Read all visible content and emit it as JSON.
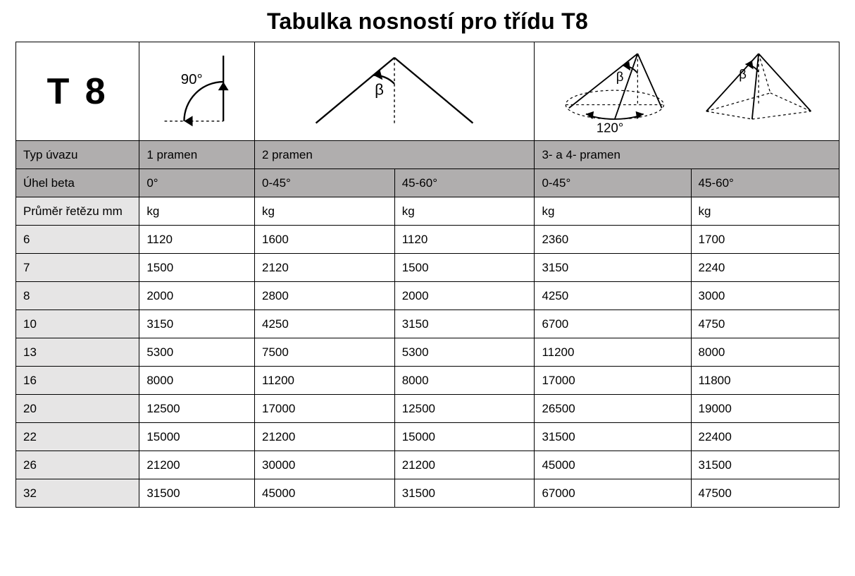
{
  "title": "Tabulka nosností pro třídu T8",
  "class_label": "T 8",
  "diagram": {
    "angle_90": "90°",
    "beta": "β",
    "angle_120": "120°"
  },
  "headers": {
    "typ_uvazu_label": "Typ úvazu",
    "typ_uvazu_1": "1 pramen",
    "typ_uvazu_2": "2 pramen",
    "typ_uvazu_34": "3- a 4- pramen",
    "uhel_beta_label": "Úhel beta",
    "beta_0": "0°",
    "beta_0_45_a": "0-45°",
    "beta_45_60_a": "45-60°",
    "beta_0_45_b": "0-45°",
    "beta_45_60_b": "45-60°",
    "prumer_label": "Průměr řetězu mm",
    "unit": "kg"
  },
  "rows": [
    {
      "d": "6",
      "v": [
        "1120",
        "1600",
        "1120",
        "2360",
        "1700"
      ]
    },
    {
      "d": "7",
      "v": [
        "1500",
        "2120",
        "1500",
        "3150",
        "2240"
      ]
    },
    {
      "d": "8",
      "v": [
        "2000",
        "2800",
        "2000",
        "4250",
        "3000"
      ]
    },
    {
      "d": "10",
      "v": [
        "3150",
        "4250",
        "3150",
        "6700",
        "4750"
      ]
    },
    {
      "d": "13",
      "v": [
        "5300",
        "7500",
        "5300",
        "11200",
        "8000"
      ]
    },
    {
      "d": "16",
      "v": [
        "8000",
        "11200",
        "8000",
        "17000",
        "11800"
      ]
    },
    {
      "d": "20",
      "v": [
        "12500",
        "17000",
        "12500",
        "26500",
        "19000"
      ]
    },
    {
      "d": "22",
      "v": [
        "15000",
        "21200",
        "15000",
        "31500",
        "22400"
      ]
    },
    {
      "d": "26",
      "v": [
        "21200",
        "30000",
        "21200",
        "45000",
        "31500"
      ]
    },
    {
      "d": "32",
      "v": [
        "31500",
        "45000",
        "31500",
        "67000",
        "47500"
      ]
    }
  ],
  "style": {
    "title_fontsize": 32,
    "cell_fontsize": 17,
    "border_color": "#000000",
    "bg_white": "#ffffff",
    "bg_dark": "#b0aeae",
    "bg_light_grey": "#e6e5e5",
    "diagram_stroke": "#000000",
    "diagram_dash": "3,3"
  }
}
